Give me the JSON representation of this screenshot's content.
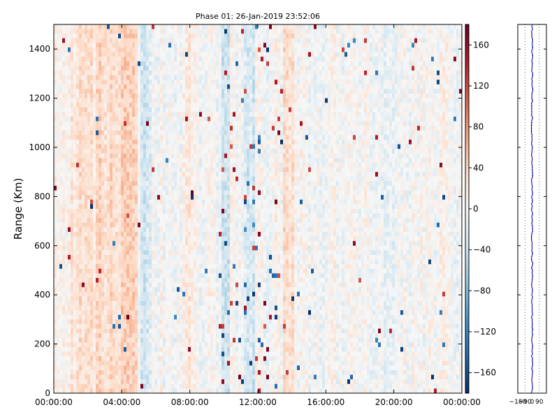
{
  "chart_data": [
    {
      "type": "heatmap",
      "title": "Phase 01: 26-Jan-2019 23:52:06",
      "xlabel": "",
      "ylabel": "Range (Km)",
      "x_ticks": [
        "00:00:00",
        "04:00:00",
        "08:00:00",
        "12:00:00",
        "16:00:00",
        "20:00:00",
        "00:00:00"
      ],
      "y_ticks": [
        0,
        200,
        400,
        600,
        800,
        1000,
        1200,
        1400
      ],
      "xlim_hours": [
        0,
        24
      ],
      "ylim": [
        0,
        1500
      ],
      "colormap": "RdBu_r",
      "colorbar": {
        "range": [
          -180,
          180
        ],
        "ticks": [
          -160,
          -120,
          -80,
          -40,
          0,
          40,
          80,
          120,
          160
        ],
        "colors": [
          "#053061",
          "#2166ac",
          "#4393c3",
          "#92c5de",
          "#d1e5f0",
          "#f7f7f7",
          "#fddbc7",
          "#f4a582",
          "#d6604d",
          "#b2182b",
          "#67001f"
        ]
      },
      "column_bias": [
        {
          "hours": [
            1.0,
            2.4
          ],
          "bias": 22
        },
        {
          "hours": [
            2.4,
            4.9
          ],
          "bias": 35
        },
        {
          "hours": [
            5.1,
            5.7
          ],
          "bias": -28
        },
        {
          "hours": [
            7.6,
            8.1
          ],
          "bias": 18
        },
        {
          "hours": [
            9.8,
            10.3
          ],
          "bias": -30
        },
        {
          "hours": [
            11.2,
            11.8
          ],
          "bias": -25
        },
        {
          "hours": [
            13.5,
            14.1
          ],
          "bias": 28
        },
        {
          "hours": [
            19.4,
            20.1
          ],
          "bias": -18
        }
      ],
      "grid": false
    },
    {
      "type": "line",
      "title": "",
      "xlabel": "",
      "ylabel": "",
      "x_ticks": [
        -180,
        -90,
        0,
        90
      ],
      "xlim": [
        -180,
        180
      ],
      "ylim": [
        0,
        1500
      ],
      "series_color": "#0000aa",
      "grid": true,
      "grid_style": "dotted vertical",
      "profile_mean": 0,
      "profile_spread": 10
    }
  ]
}
